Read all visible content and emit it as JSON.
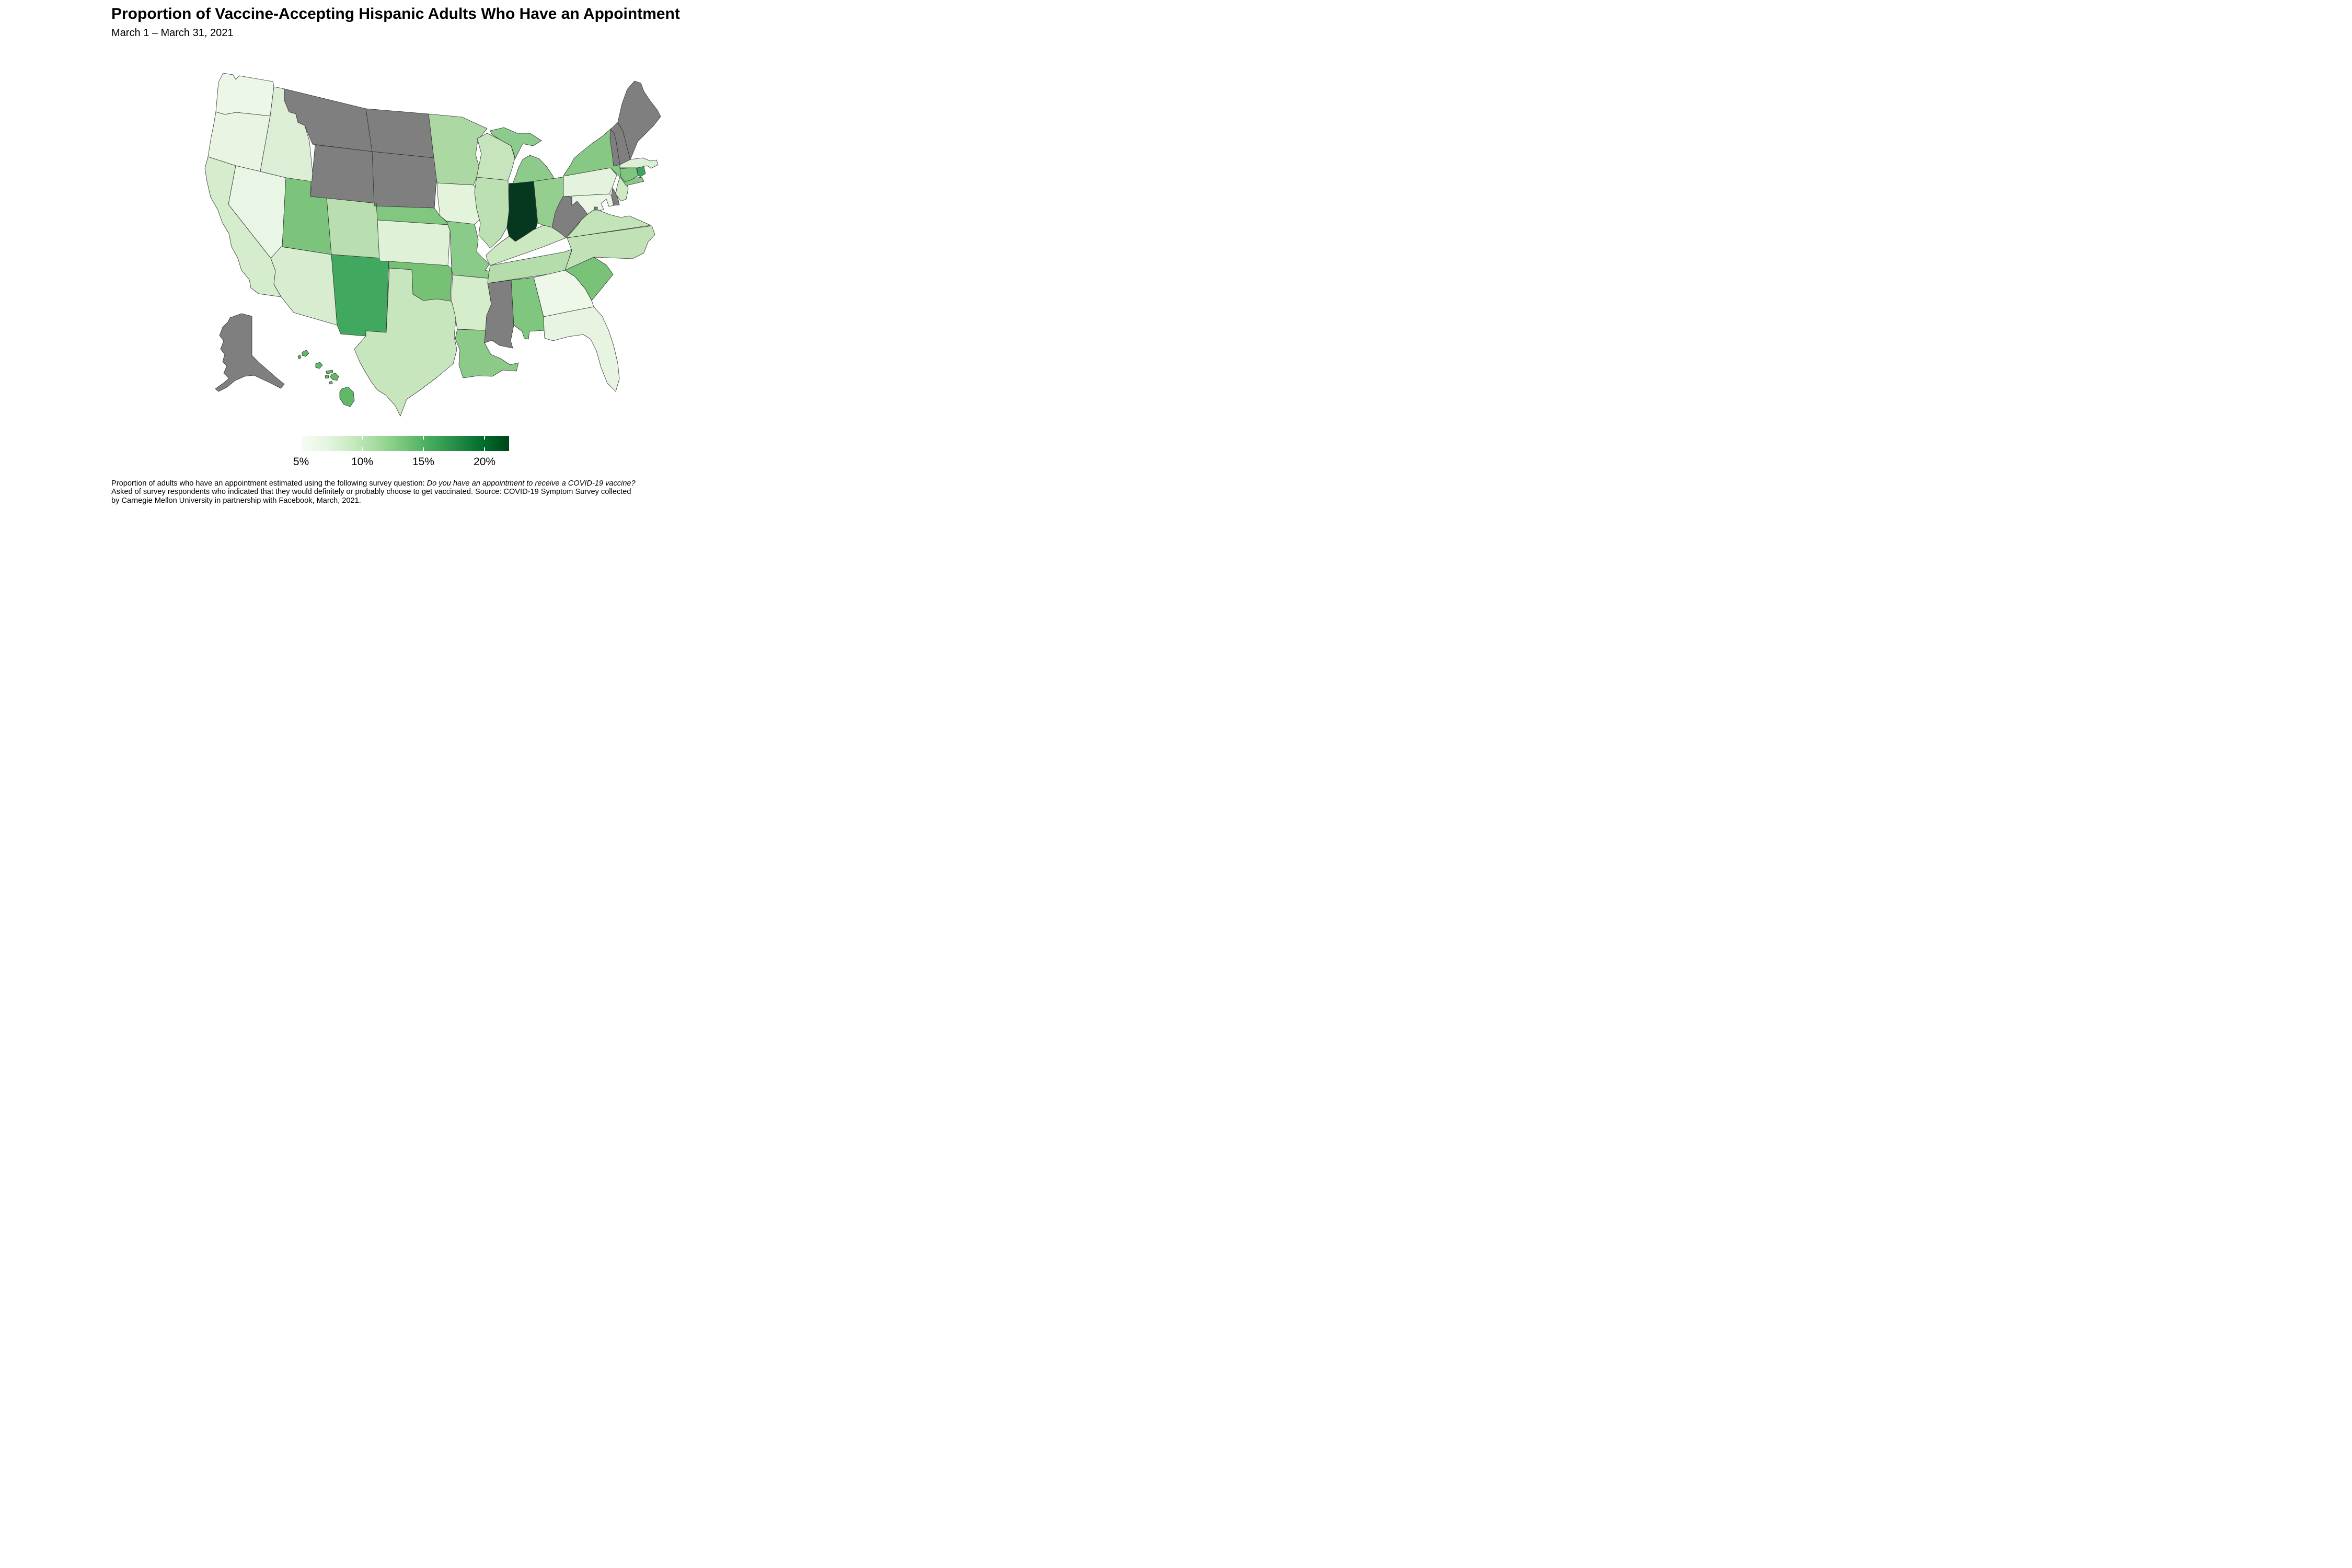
{
  "title": "Proportion of Vaccine-Accepting Hispanic Adults Who Have an Appointment",
  "subtitle": "March 1 – March 31, 2021",
  "legend": {
    "tick_labels": [
      "5%",
      "10%",
      "15%",
      "20%"
    ],
    "tick_positions_pct": [
      0,
      29.4,
      58.8,
      88.2
    ],
    "gradient_colors": [
      "#F7FCF5",
      "#E5F5E0",
      "#C7E9C0",
      "#A1D99B",
      "#74C476",
      "#41AB5D",
      "#238B45",
      "#006D2C",
      "#00441B"
    ],
    "na_color": "#7F7F7F"
  },
  "footnote": {
    "line1_normal": "Proportion of adults who have an appointment estimated using the following survey question: ",
    "line1_italic": "Do you have an appointment to receive a COVID-19 vaccine?",
    "line2": "Asked of survey respondents who indicated that they would definitely or probably choose to get vaccinated. Source: COVID-19 Symptom Survey collected",
    "line3": "by Carnegie Mellon University in partnership with Facebook, March, 2021."
  },
  "chart_data": {
    "type": "choropleth",
    "geography": "US states (Albers-style layout, AK and HI inset)",
    "metric": "Proportion of vaccine-accepting Hispanic adults who have a COVID-19 vaccine appointment",
    "unit": "percent",
    "date_range": "March 1 – March 31, 2021",
    "legend_range": [
      5,
      22
    ],
    "no_data_color": "#7F7F7F",
    "states": [
      {
        "id": "WA",
        "name": "Washington",
        "value": 5.8,
        "color": "#ECF7E8"
      },
      {
        "id": "OR",
        "name": "Oregon",
        "value": 5.9,
        "color": "#E9F5E2"
      },
      {
        "id": "CA",
        "name": "California",
        "value": 7.4,
        "color": "#D5ECCD"
      },
      {
        "id": "NV",
        "name": "Nevada",
        "value": 5.9,
        "color": "#EAF6E5"
      },
      {
        "id": "ID",
        "name": "Idaho",
        "value": 6.8,
        "color": "#DCEFD6"
      },
      {
        "id": "MT",
        "name": "Montana",
        "value": null,
        "color": "#7F7F7F"
      },
      {
        "id": "WY",
        "name": "Wyoming",
        "value": null,
        "color": "#7F7F7F"
      },
      {
        "id": "UT",
        "name": "Utah",
        "value": 12.8,
        "color": "#7CC47C"
      },
      {
        "id": "AZ",
        "name": "Arizona",
        "value": 7.4,
        "color": "#D8EDD0"
      },
      {
        "id": "CO",
        "name": "Colorado",
        "value": 9.3,
        "color": "#B9DFB0"
      },
      {
        "id": "NM",
        "name": "New Mexico",
        "value": 15.8,
        "color": "#41A85F"
      },
      {
        "id": "ND",
        "name": "North Dakota",
        "value": null,
        "color": "#7F7F7F"
      },
      {
        "id": "SD",
        "name": "South Dakota",
        "value": null,
        "color": "#7F7F7F"
      },
      {
        "id": "NE",
        "name": "Nebraska",
        "value": 12.4,
        "color": "#82C77F"
      },
      {
        "id": "KS",
        "name": "Kansas",
        "value": 6.7,
        "color": "#DFF2D8"
      },
      {
        "id": "OK",
        "name": "Oklahoma",
        "value": 13.0,
        "color": "#77C175"
      },
      {
        "id": "TX",
        "name": "Texas",
        "value": 8.2,
        "color": "#C8E6BE"
      },
      {
        "id": "MN",
        "name": "Minnesota",
        "value": 10.0,
        "color": "#ABD8A3"
      },
      {
        "id": "IA",
        "name": "Iowa",
        "value": 6.4,
        "color": "#E3F3DC"
      },
      {
        "id": "MO",
        "name": "Missouri",
        "value": 12.0,
        "color": "#8BCB8A"
      },
      {
        "id": "AR",
        "name": "Arkansas",
        "value": 7.3,
        "color": "#D5EDCB"
      },
      {
        "id": "LA",
        "name": "Louisiana",
        "value": 11.9,
        "color": "#8BCA89"
      },
      {
        "id": "WI",
        "name": "Wisconsin",
        "value": 8.8,
        "color": "#C6E5BC"
      },
      {
        "id": "IL",
        "name": "Illinois",
        "value": 9.5,
        "color": "#BCE0B2"
      },
      {
        "id": "IN",
        "name": "Indiana",
        "value": 23.0,
        "color": "#05381E"
      },
      {
        "id": "MI",
        "name": "Michigan",
        "value": 11.8,
        "color": "#8CCB8B"
      },
      {
        "id": "OH",
        "name": "Ohio",
        "value": 11.3,
        "color": "#95CF90"
      },
      {
        "id": "KY",
        "name": "Kentucky",
        "value": 8.6,
        "color": "#CBE8C1"
      },
      {
        "id": "TN",
        "name": "Tennessee",
        "value": 9.7,
        "color": "#B5DCAB"
      },
      {
        "id": "MS",
        "name": "Mississippi",
        "value": null,
        "color": "#7F7F7F"
      },
      {
        "id": "AL",
        "name": "Alabama",
        "value": 12.5,
        "color": "#7FC67E"
      },
      {
        "id": "GA",
        "name": "Georgia",
        "value": 5.5,
        "color": "#EDF8E9"
      },
      {
        "id": "FL",
        "name": "Florida",
        "value": 6.1,
        "color": "#E7F4E1"
      },
      {
        "id": "SC",
        "name": "South Carolina",
        "value": 13.1,
        "color": "#79C379"
      },
      {
        "id": "NC",
        "name": "North Carolina",
        "value": 9.1,
        "color": "#C0E2B6"
      },
      {
        "id": "VA",
        "name": "Virginia",
        "value": 9.0,
        "color": "#C3E4B9"
      },
      {
        "id": "WV",
        "name": "West Virginia",
        "value": null,
        "color": "#7F7F7F"
      },
      {
        "id": "MD",
        "name": "Maryland",
        "value": 5.8,
        "color": "#E9F6E4"
      },
      {
        "id": "DE",
        "name": "Delaware",
        "value": null,
        "color": "#7F7F7F"
      },
      {
        "id": "NJ",
        "name": "New Jersey",
        "value": 8.4,
        "color": "#CFE9C5"
      },
      {
        "id": "PA",
        "name": "Pennsylvania",
        "value": 6.2,
        "color": "#E4F3DD"
      },
      {
        "id": "NY",
        "name": "New York",
        "value": 12.2,
        "color": "#86C884"
      },
      {
        "id": "CT",
        "name": "Connecticut",
        "value": 12.6,
        "color": "#7FC57E"
      },
      {
        "id": "RI",
        "name": "Rhode Island",
        "value": 16.0,
        "color": "#41A55F"
      },
      {
        "id": "MA",
        "name": "Massachusetts",
        "value": 6.6,
        "color": "#DDF0D6"
      },
      {
        "id": "VT",
        "name": "Vermont",
        "value": null,
        "color": "#7F7F7F"
      },
      {
        "id": "NH",
        "name": "New Hampshire",
        "value": null,
        "color": "#7F7F7F"
      },
      {
        "id": "ME",
        "name": "Maine",
        "value": null,
        "color": "#7F7F7F"
      },
      {
        "id": "AK",
        "name": "Alaska",
        "value": null,
        "color": "#7F7F7F"
      },
      {
        "id": "HI",
        "name": "Hawaii",
        "value": 13.5,
        "color": "#60B869"
      },
      {
        "id": "DC",
        "name": "District of Columbia",
        "value": null,
        "color": "#7F7F7F"
      }
    ]
  }
}
